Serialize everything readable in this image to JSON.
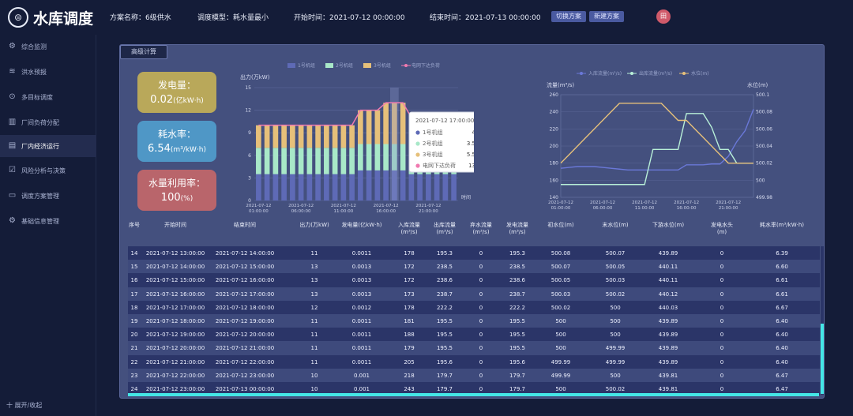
{
  "header": {
    "logo_icon": "reservoir-logo-icon",
    "title": "水库调度",
    "plan_name": "方案名称：6级供水",
    "model": "调度模型：耗水量最小",
    "start_time": "开始时间：2021-07-12 00:00:00",
    "end_time": "结束时间：2021-07-13 00:00:00",
    "btn_switch": "切换方案",
    "btn_new": "新建方案",
    "avatar": "田"
  },
  "sidebar": {
    "items": [
      {
        "label": "综合监测",
        "icon": "gear-icon"
      },
      {
        "label": "洪水预报",
        "icon": "wave-icon"
      },
      {
        "label": "多目标调度",
        "icon": "target-icon"
      },
      {
        "label": "厂间负荷分配",
        "icon": "bar-icon"
      },
      {
        "label": "厂内经济运行",
        "icon": "doc-icon"
      },
      {
        "label": "风险分析与决策",
        "icon": "check-icon"
      },
      {
        "label": "调度方案管理",
        "icon": "monitor-icon"
      },
      {
        "label": "基础信息管理",
        "icon": "settings-icon"
      }
    ],
    "active_index": 4,
    "collapse_label": "十 展开/收起"
  },
  "panel": {
    "tab_label": "高级计算"
  },
  "kpis": [
    {
      "title": "发电量：",
      "value": "0.02",
      "unit": "(亿kW·h)",
      "color": "#b9a85a"
    },
    {
      "title": "耗水率：",
      "value": "6.54",
      "unit": "(m³/kW·h)",
      "color": "#4f97c6"
    },
    {
      "title": "水量利用率：",
      "value": "100",
      "unit": "(%)",
      "color": "#b9656b"
    }
  ],
  "chart_data": [
    {
      "type": "bar",
      "stacked": true,
      "ylabel": "出力(万kW)",
      "xlabel": "时间",
      "ylim": [
        0,
        15
      ],
      "yticks": [
        0,
        3,
        6,
        9,
        12,
        15
      ],
      "xtick_labels": [
        "2021-07-12 01:00:00",
        "2021-07-12 06:00:00",
        "2021-07-12 11:00:00",
        "2021-07-12 16:00:00",
        "2021-07-12 21:00:00"
      ],
      "legend": [
        "1号机组",
        "2号机组",
        "3号机组",
        "电网下达负荷"
      ],
      "colors": [
        "#5e6ab6",
        "#a8e8c8",
        "#e6c07a",
        "#f07ab0"
      ],
      "hours": [
        "01",
        "02",
        "03",
        "04",
        "05",
        "06",
        "07",
        "08",
        "09",
        "10",
        "11",
        "12",
        "13",
        "14",
        "15",
        "16",
        "17",
        "18",
        "19",
        "20",
        "21",
        "22",
        "23",
        "24"
      ],
      "series": [
        {
          "name": "1号机组",
          "values": [
            3.5,
            3.5,
            3.5,
            3.5,
            3.5,
            3.5,
            3.5,
            3.5,
            3.5,
            3.5,
            3.5,
            3.5,
            4,
            4,
            4,
            4,
            4,
            4,
            3.5,
            3.5,
            3.5,
            3.5,
            3.5,
            3.5
          ]
        },
        {
          "name": "2号机组",
          "values": [
            3.5,
            3.5,
            3.5,
            3.5,
            3.5,
            3.5,
            3.5,
            3.5,
            3.5,
            3.5,
            3.5,
            3.5,
            3.5,
            3.5,
            3.5,
            3.5,
            3.5,
            3.5,
            3.5,
            3.5,
            3.5,
            3.5,
            3.5,
            3.5
          ]
        },
        {
          "name": "3号机组",
          "values": [
            3,
            3,
            3,
            3,
            3,
            3,
            3,
            3,
            3,
            3,
            3,
            3,
            4.5,
            4.5,
            4.5,
            5.5,
            5.5,
            5.5,
            4,
            4,
            4,
            3,
            3,
            3
          ]
        }
      ],
      "load_line": {
        "name": "电网下达负荷",
        "values": [
          10,
          10,
          10,
          10,
          10,
          10,
          10,
          10,
          10,
          10,
          10,
          10,
          12,
          12,
          12,
          13,
          13,
          13,
          11,
          11,
          11,
          10,
          10,
          10
        ]
      },
      "tooltip": {
        "title": "2021-07-12 17:00:00",
        "rows": [
          {
            "name": "1号机组",
            "value": "4"
          },
          {
            "name": "2号机组",
            "value": "3.5"
          },
          {
            "name": "3号机组",
            "value": "5.5"
          },
          {
            "name": "电网下达负荷",
            "value": "13"
          }
        ]
      }
    },
    {
      "type": "line",
      "ylabel_left": "流量(m³/s)",
      "ylabel_right": "水位(m)",
      "ylim_left": [
        140,
        260
      ],
      "yticks_left": [
        140,
        160,
        180,
        200,
        220,
        240,
        260
      ],
      "ylim_right": [
        499.98,
        500.1
      ],
      "yticks_right": [
        "499.98",
        "500",
        "500.02",
        "500.04",
        "500.06",
        "500.08",
        "500.1"
      ],
      "xtick_labels": [
        "2021-07-12 01:00:00",
        "2021-07-12 06:00:00",
        "2021-07-12 11:00:00",
        "2021-07-12 16:00:00",
        "2021-07-12 21:00:00"
      ],
      "legend": [
        "入库流量(m³/s)",
        "出库流量(m³/s)",
        "水位(m)"
      ],
      "colors": [
        "#6a78d8",
        "#b8f0d8",
        "#e6c07a"
      ],
      "series": [
        {
          "name": "入库流量(m³/s)",
          "axis": "left",
          "values": [
            174,
            175,
            176,
            176,
            176,
            175,
            174,
            173,
            172,
            172,
            172,
            172,
            172,
            172,
            172,
            178,
            178,
            178,
            179,
            179,
            188,
            205,
            218,
            243
          ]
        },
        {
          "name": "出库流量(m³/s)",
          "axis": "left",
          "values": [
            155,
            155,
            155,
            155,
            155,
            155,
            155,
            155,
            155,
            155,
            155,
            196,
            196,
            196,
            196,
            238,
            238,
            238,
            222,
            196,
            196,
            180,
            180,
            180
          ]
        },
        {
          "name": "水位(m)",
          "axis": "right",
          "values": [
            500.02,
            500.03,
            500.04,
            500.05,
            500.06,
            500.07,
            500.08,
            500.09,
            500.09,
            500.09,
            500.09,
            500.09,
            500.09,
            500.08,
            500.07,
            500.07,
            500.06,
            500.05,
            500.04,
            500.03,
            500.02,
            500.02,
            500.02,
            500.02
          ]
        }
      ]
    }
  ],
  "table": {
    "columns": [
      "序号",
      "开始时间",
      "结束时间",
      "出力(万kW)",
      "发电量(亿kW·h)",
      "入库流量(m³/s)",
      "出库流量(m³/s)",
      "弃水流量(m³/s)",
      "发电流量(m³/s)",
      "初水位(m)",
      "末水位(m)",
      "下游水位(m)",
      "发电水头(m)",
      "耗水率(m³/kW·h)"
    ],
    "rows": [
      [
        "14",
        "2021-07-12 13:00:00",
        "2021-07-12 14:00:00",
        "11",
        "0.0011",
        "178",
        "195.3",
        "0",
        "195.3",
        "500.08",
        "500.07",
        "439.89",
        "0",
        "6.39"
      ],
      [
        "15",
        "2021-07-12 14:00:00",
        "2021-07-12 15:00:00",
        "13",
        "0.0013",
        "172",
        "238.5",
        "0",
        "238.5",
        "500.07",
        "500.05",
        "440.11",
        "0",
        "6.60"
      ],
      [
        "16",
        "2021-07-12 15:00:00",
        "2021-07-12 16:00:00",
        "13",
        "0.0013",
        "172",
        "238.6",
        "0",
        "238.6",
        "500.05",
        "500.03",
        "440.11",
        "0",
        "6.61"
      ],
      [
        "17",
        "2021-07-12 16:00:00",
        "2021-07-12 17:00:00",
        "13",
        "0.0013",
        "173",
        "238.7",
        "0",
        "238.7",
        "500.03",
        "500.02",
        "440.12",
        "0",
        "6.61"
      ],
      [
        "18",
        "2021-07-12 17:00:00",
        "2021-07-12 18:00:00",
        "12",
        "0.0012",
        "178",
        "222.2",
        "0",
        "222.2",
        "500.02",
        "500",
        "440.03",
        "0",
        "6.67"
      ],
      [
        "19",
        "2021-07-12 18:00:00",
        "2021-07-12 19:00:00",
        "11",
        "0.0011",
        "181",
        "195.5",
        "0",
        "195.5",
        "500",
        "500",
        "439.89",
        "0",
        "6.40"
      ],
      [
        "20",
        "2021-07-12 19:00:00",
        "2021-07-12 20:00:00",
        "11",
        "0.0011",
        "188",
        "195.5",
        "0",
        "195.5",
        "500",
        "500",
        "439.89",
        "0",
        "6.40"
      ],
      [
        "21",
        "2021-07-12 20:00:00",
        "2021-07-12 21:00:00",
        "11",
        "0.0011",
        "179",
        "195.5",
        "0",
        "195.5",
        "500",
        "499.99",
        "439.89",
        "0",
        "6.40"
      ],
      [
        "22",
        "2021-07-12 21:00:00",
        "2021-07-12 22:00:00",
        "11",
        "0.0011",
        "205",
        "195.6",
        "0",
        "195.6",
        "499.99",
        "499.99",
        "439.89",
        "0",
        "6.40"
      ],
      [
        "23",
        "2021-07-12 22:00:00",
        "2021-07-12 23:00:00",
        "10",
        "0.001",
        "218",
        "179.7",
        "0",
        "179.7",
        "499.99",
        "500",
        "439.81",
        "0",
        "6.47"
      ],
      [
        "24",
        "2021-07-12 23:00:00",
        "2021-07-13 00:00:00",
        "10",
        "0.001",
        "243",
        "179.7",
        "0",
        "179.7",
        "500",
        "500.02",
        "439.81",
        "0",
        "6.47"
      ]
    ]
  }
}
